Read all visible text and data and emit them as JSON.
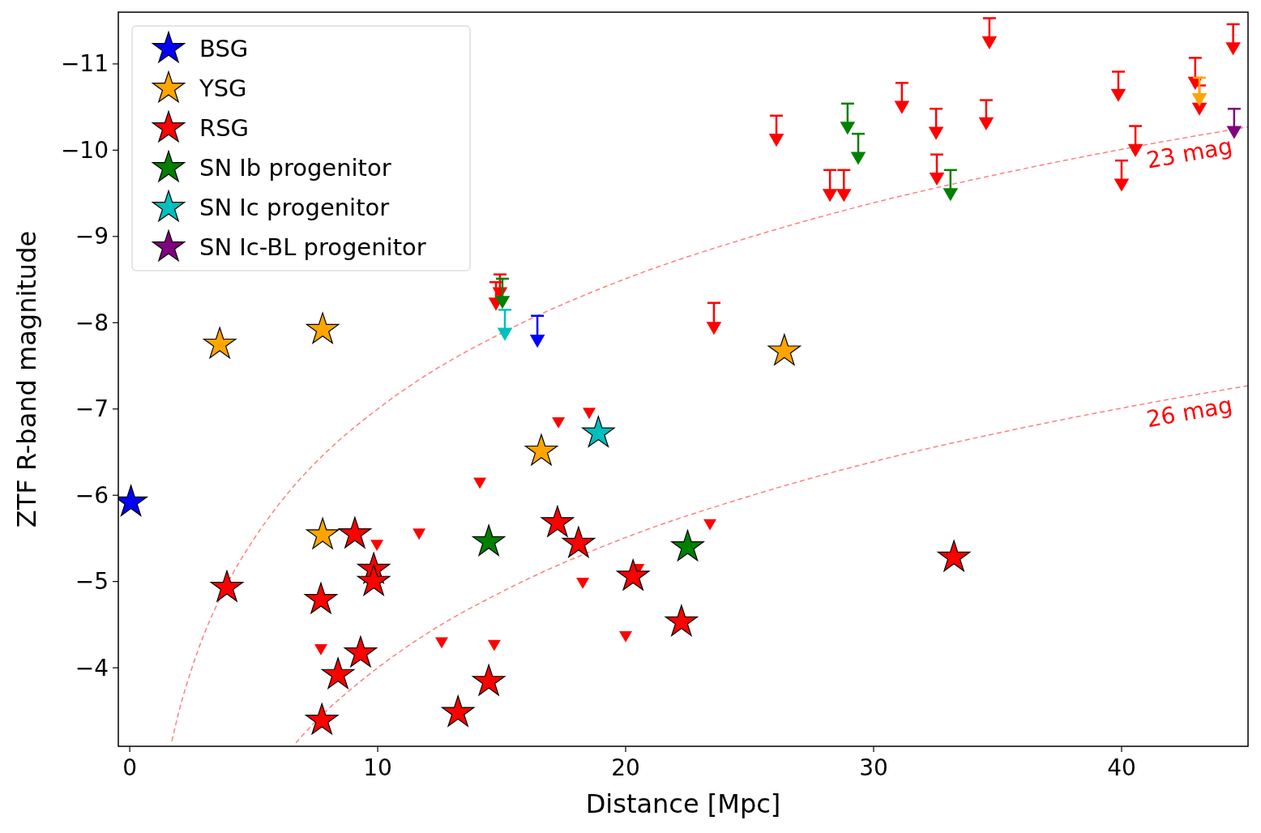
{
  "chart_data": {
    "type": "scatter",
    "xlabel": "Distance [Mpc]",
    "ylabel": "ZTF R-band magnitude",
    "xlim": [
      -0.46,
      45.1
    ],
    "ylim": [
      -3.09,
      -11.6
    ],
    "xticks": [
      0,
      10,
      20,
      30,
      40
    ],
    "yticks": [
      {
        "value": -11,
        "label": "−11"
      },
      {
        "value": -10,
        "label": "−10"
      },
      {
        "value": -9,
        "label": "−9"
      },
      {
        "value": -8,
        "label": "−8"
      },
      {
        "value": -7,
        "label": "−7"
      },
      {
        "value": -6,
        "label": "−6"
      },
      {
        "value": -5,
        "label": "−5"
      },
      {
        "value": -4,
        "label": "−4"
      }
    ],
    "grid": false,
    "legend": "top left",
    "annotations": [
      "23 mag",
      "26 mag"
    ],
    "series": [
      {
        "type": "line",
        "color": "#ff7f7f",
        "line_style": "dashed",
        "x": [
          1.7,
          2,
          2.5,
          3,
          3.5,
          4,
          5,
          6,
          7,
          8,
          10,
          12,
          15,
          20,
          25,
          30,
          35,
          40,
          45.1
        ],
        "values": [
          -3.15,
          -3.51,
          -3.99,
          -4.39,
          -4.72,
          -5.01,
          -5.49,
          -5.89,
          -6.23,
          -6.52,
          -7.0,
          -7.4,
          -7.88,
          -8.51,
          -8.99,
          -9.39,
          -9.72,
          -10.01,
          -10.27
        ]
      },
      {
        "type": "line",
        "color": "#ff7f7f",
        "line_style": "dashed",
        "x": [
          6.7,
          7.5,
          8,
          9,
          10,
          12,
          15,
          20,
          25,
          30,
          35,
          40,
          45.1
        ],
        "values": [
          -3.13,
          -3.38,
          -3.52,
          -3.77,
          -4.0,
          -4.4,
          -4.88,
          -5.51,
          -5.99,
          -6.39,
          -6.72,
          -7.01,
          -7.27
        ]
      },
      {
        "color": "#ff0000",
        "marker": "triangle",
        "x": [
          17.29,
          18.53,
          14.12,
          11.67,
          9.97,
          18.27,
          20.5,
          23.4,
          7.71,
          12.58,
          14.7,
          20.0
        ],
        "values": [
          -6.86,
          -6.97,
          -6.16,
          -5.57,
          -5.44,
          -5.0,
          -5.16,
          -5.68,
          -4.23,
          -4.31,
          -4.28,
          -4.38
        ]
      },
      {
        "color": "#ff0000",
        "marker": "triangle",
        "x": [
          14.77,
          14.93,
          23.56,
          26.08,
          28.24,
          28.8,
          31.14,
          32.52,
          32.55,
          34.67,
          34.54,
          39.87,
          40.56,
          40.0,
          42.97,
          43.14,
          44.5
        ],
        "values": [
          -8.24,
          -8.36,
          -7.96,
          -10.14,
          -9.5,
          -9.5,
          -10.52,
          -10.22,
          -9.69,
          -11.27,
          -10.33,
          -10.66,
          -10.02,
          -9.62,
          -10.8,
          -10.5,
          -11.2
        ],
        "errors": [
          [
            -8.47,
            -8.24
          ],
          [
            -8.56,
            -8.36
          ],
          [
            -8.23,
            -7.96
          ],
          [
            -10.4,
            -10.14
          ],
          [
            -9.77,
            -9.5
          ],
          [
            -9.77,
            -9.5
          ],
          [
            -10.78,
            -10.52
          ],
          [
            -10.48,
            -10.22
          ],
          [
            -9.95,
            -9.69
          ],
          [
            -11.53,
            -11.27
          ],
          [
            -10.58,
            -10.33
          ],
          [
            -10.91,
            -10.66
          ],
          [
            -10.28,
            -10.02
          ],
          [
            -9.88,
            -9.62
          ],
          [
            -11.07,
            -10.8
          ],
          [
            -10.75,
            -10.5
          ],
          [
            -11.46,
            -11.2
          ]
        ]
      },
      {
        "color": "#008000",
        "marker": "triangle",
        "x": [
          15.03,
          28.95,
          29.38,
          33.1
        ],
        "values": [
          -8.26,
          -10.28,
          -9.93,
          -9.51
        ],
        "errors": [
          [
            -8.51,
            -8.26
          ],
          [
            -10.54,
            -10.28
          ],
          [
            -10.19,
            -9.93
          ],
          [
            -9.77,
            -9.51
          ]
        ]
      },
      {
        "color": "#00bfbf",
        "marker": "triangle",
        "x": [
          15.13
        ],
        "values": [
          -7.89
        ],
        "errors": [
          [
            -8.15,
            -7.89
          ]
        ]
      },
      {
        "color": "#0000ff",
        "marker": "triangle",
        "x": [
          16.44
        ],
        "values": [
          -7.81
        ],
        "errors": [
          [
            -8.08,
            -7.81
          ]
        ]
      },
      {
        "color": "#800080",
        "marker": "triangle",
        "x": [
          44.54
        ],
        "values": [
          -10.23
        ],
        "errors": [
          [
            -10.48,
            -10.23
          ]
        ]
      },
      {
        "color": "#ffa500",
        "marker": "triangle",
        "x": [
          43.14
        ],
        "values": [
          -10.61
        ],
        "errors": [
          [
            -10.84,
            -10.61
          ]
        ]
      },
      {
        "name": "BSG",
        "color": "#0000ff",
        "marker": "star",
        "x": [
          0.05
        ],
        "values": [
          -5.92
        ]
      },
      {
        "name": "YSG",
        "color": "#ffa500",
        "marker": "star",
        "x": [
          3.63,
          7.78,
          26.4,
          16.6,
          7.78
        ],
        "values": [
          -7.75,
          -7.92,
          -7.67,
          -6.51,
          -5.54
        ]
      },
      {
        "name": "RSG",
        "color": "#ff0000",
        "marker": "star",
        "x": [
          3.92,
          7.71,
          9.08,
          9.84,
          9.84,
          9.31,
          8.4,
          7.75,
          13.24,
          14.48,
          17.25,
          18.1,
          20.3,
          22.25,
          33.24
        ],
        "values": [
          -4.93,
          -4.79,
          -5.55,
          -5.14,
          -5.0,
          -4.17,
          -3.92,
          -3.39,
          -3.48,
          -3.84,
          -5.68,
          -5.44,
          -5.06,
          -4.53,
          -5.28
        ]
      },
      {
        "name": "SN Ib progenitor",
        "color": "#008000",
        "marker": "star",
        "x": [
          14.48,
          22.5
        ],
        "values": [
          -5.46,
          -5.4
        ]
      },
      {
        "name": "SN Ic progenitor",
        "color": "#00bfbf",
        "marker": "star",
        "x": [
          18.9
        ],
        "values": [
          -6.72
        ]
      },
      {
        "name": "SN Ic-BL progenitor",
        "color": "#800080",
        "marker": "star"
      }
    ]
  }
}
